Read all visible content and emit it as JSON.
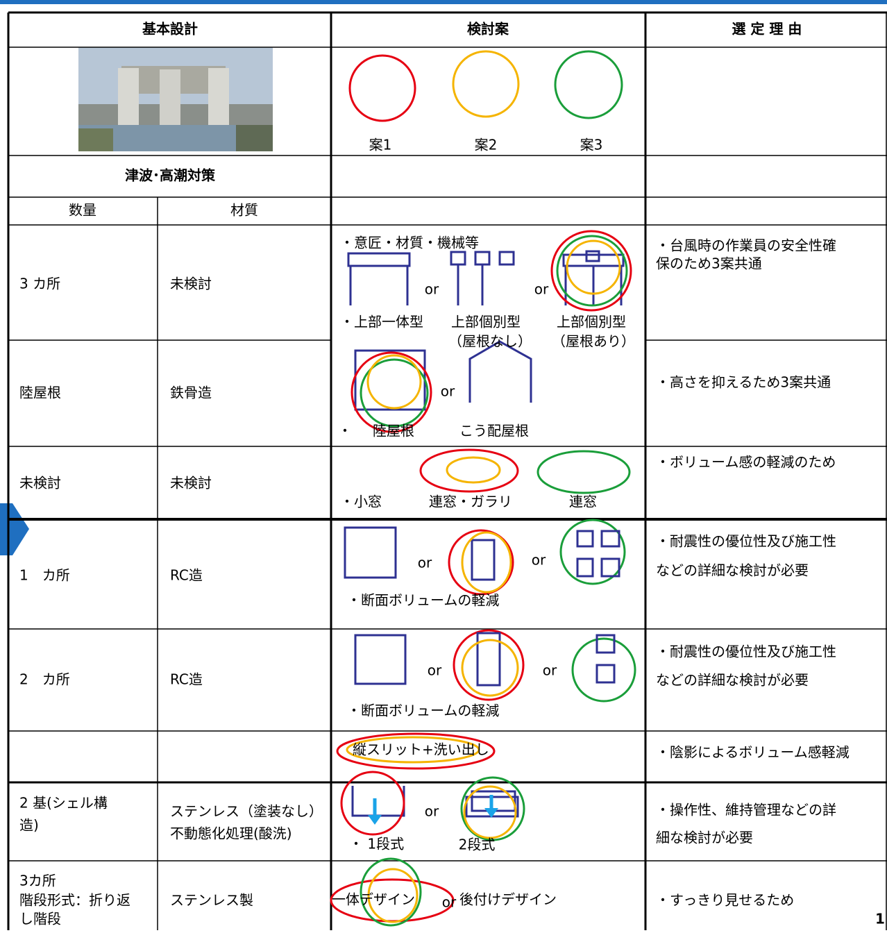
{
  "header": {
    "columns": [
      "基本設計",
      "検討案",
      "選 定 理 由"
    ]
  },
  "options": [
    "案1",
    "案2",
    "案3"
  ],
  "section_title": "津波･高潮対策",
  "subheader": [
    "数量",
    "材質"
  ],
  "rows": [
    {
      "quantity": [
        "3 カ所"
      ],
      "material": [
        "未検討"
      ],
      "proposal": [
        "・意匠・材質・機械等",
        "or",
        "or",
        "・上部一体型",
        "上部個別型",
        "上部個別型",
        "（屋根なし）",
        "（屋根あり）"
      ],
      "reason": [
        "・台風時の作業員の安全性確",
        "保のため3案共通"
      ]
    },
    {
      "quantity": [
        "陸屋根"
      ],
      "material": [
        "鉄骨造"
      ],
      "proposal": [
        "or",
        "・",
        "陸屋根",
        "こう配屋根"
      ],
      "reason": [
        "・高さを抑えるため3案共通"
      ]
    },
    {
      "quantity": [
        "未検討"
      ],
      "material": [
        "未検討"
      ],
      "proposal": [
        "・小窓",
        "連窓・ガラリ",
        "連窓"
      ],
      "reason": [
        "・ボリューム感の軽減のため"
      ]
    },
    {
      "quantity": [
        "1　カ所"
      ],
      "material": [
        "RC造"
      ],
      "proposal": [
        "or",
        "or",
        "・断面ボリュームの軽減"
      ],
      "reason": [
        "・耐震性の優位性及び施工性",
        "などの詳細な検討が必要"
      ]
    },
    {
      "quantity": [
        "2　カ所"
      ],
      "material": [
        "RC造"
      ],
      "proposal": [
        "or",
        "or",
        "・断面ボリュームの軽減"
      ],
      "reason": [
        "・耐震性の優位性及び施工性",
        "などの詳細な検討が必要"
      ]
    },
    {
      "quantity": [],
      "material": [],
      "proposal": [
        "縦スリット+洗い出し"
      ],
      "reason": [
        "・陰影によるボリューム感軽減"
      ]
    },
    {
      "quantity": [
        "2 基(シェル構",
        "造)"
      ],
      "material": [
        "ステンレス（塗装なし）",
        "不動態化処理(酸洗)"
      ],
      "proposal": [
        "or",
        "・ 1段式",
        "2段式"
      ],
      "reason": [
        "・操作性、維持管理などの詳",
        "細な検討が必要"
      ]
    },
    {
      "quantity": [
        "3カ所",
        "階段形式：折り返",
        "し階段"
      ],
      "material": [
        "ステンレス製"
      ],
      "proposal": [
        "一体デザイン",
        "or",
        "後付けデザイン"
      ],
      "reason": [
        "・すっきり見せるため"
      ]
    }
  ],
  "page_number": "1"
}
